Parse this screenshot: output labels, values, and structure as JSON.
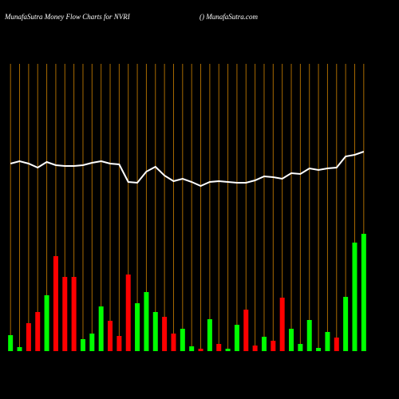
{
  "chart_data": {
    "type": "bar",
    "title": "MunafaSutra  Money Flow  Charts for NVRI",
    "subtitle": "() MunafaSutra.com",
    "ylim": [
      0,
      440
    ],
    "values": [
      20,
      5,
      35,
      49,
      70,
      119,
      93,
      93,
      15,
      22,
      56,
      38,
      19,
      96,
      60,
      74,
      49,
      43,
      22,
      28,
      6,
      3,
      40,
      9,
      3,
      33,
      52,
      7,
      18,
      13,
      67,
      28,
      9,
      39,
      4,
      24,
      17,
      68,
      136,
      147
    ],
    "colors": [
      "#00ff00",
      "#00ff00",
      "#ff0000",
      "#ff0000",
      "#00ff00",
      "#ff0000",
      "#ff0000",
      "#ff0000",
      "#00ff00",
      "#00ff00",
      "#00ff00",
      "#ff0000",
      "#ff0000",
      "#ff0000",
      "#00ff00",
      "#00ff00",
      "#00ff00",
      "#ff0000",
      "#ff0000",
      "#00ff00",
      "#00ff00",
      "#ff0000",
      "#00ff00",
      "#ff0000",
      "#00ff00",
      "#00ff00",
      "#ff0000",
      "#ff0000",
      "#00ff00",
      "#ff0000",
      "#ff0000",
      "#00ff00",
      "#00ff00",
      "#00ff00",
      "#00ff00",
      "#00ff00",
      "#ff0000",
      "#00ff00",
      "#00ff00",
      "#00ff00"
    ],
    "line": {
      "color": "#ffffff",
      "values": [
        235,
        238,
        235,
        230,
        237,
        233,
        232,
        232,
        233,
        236,
        238,
        235,
        234,
        212,
        211,
        225,
        231,
        220,
        213,
        216,
        212,
        207,
        212,
        213,
        212,
        211,
        211,
        214,
        219,
        218,
        216,
        223,
        222,
        229,
        227,
        229,
        230,
        244,
        246,
        250
      ]
    },
    "grid_color": "#a86a00"
  }
}
